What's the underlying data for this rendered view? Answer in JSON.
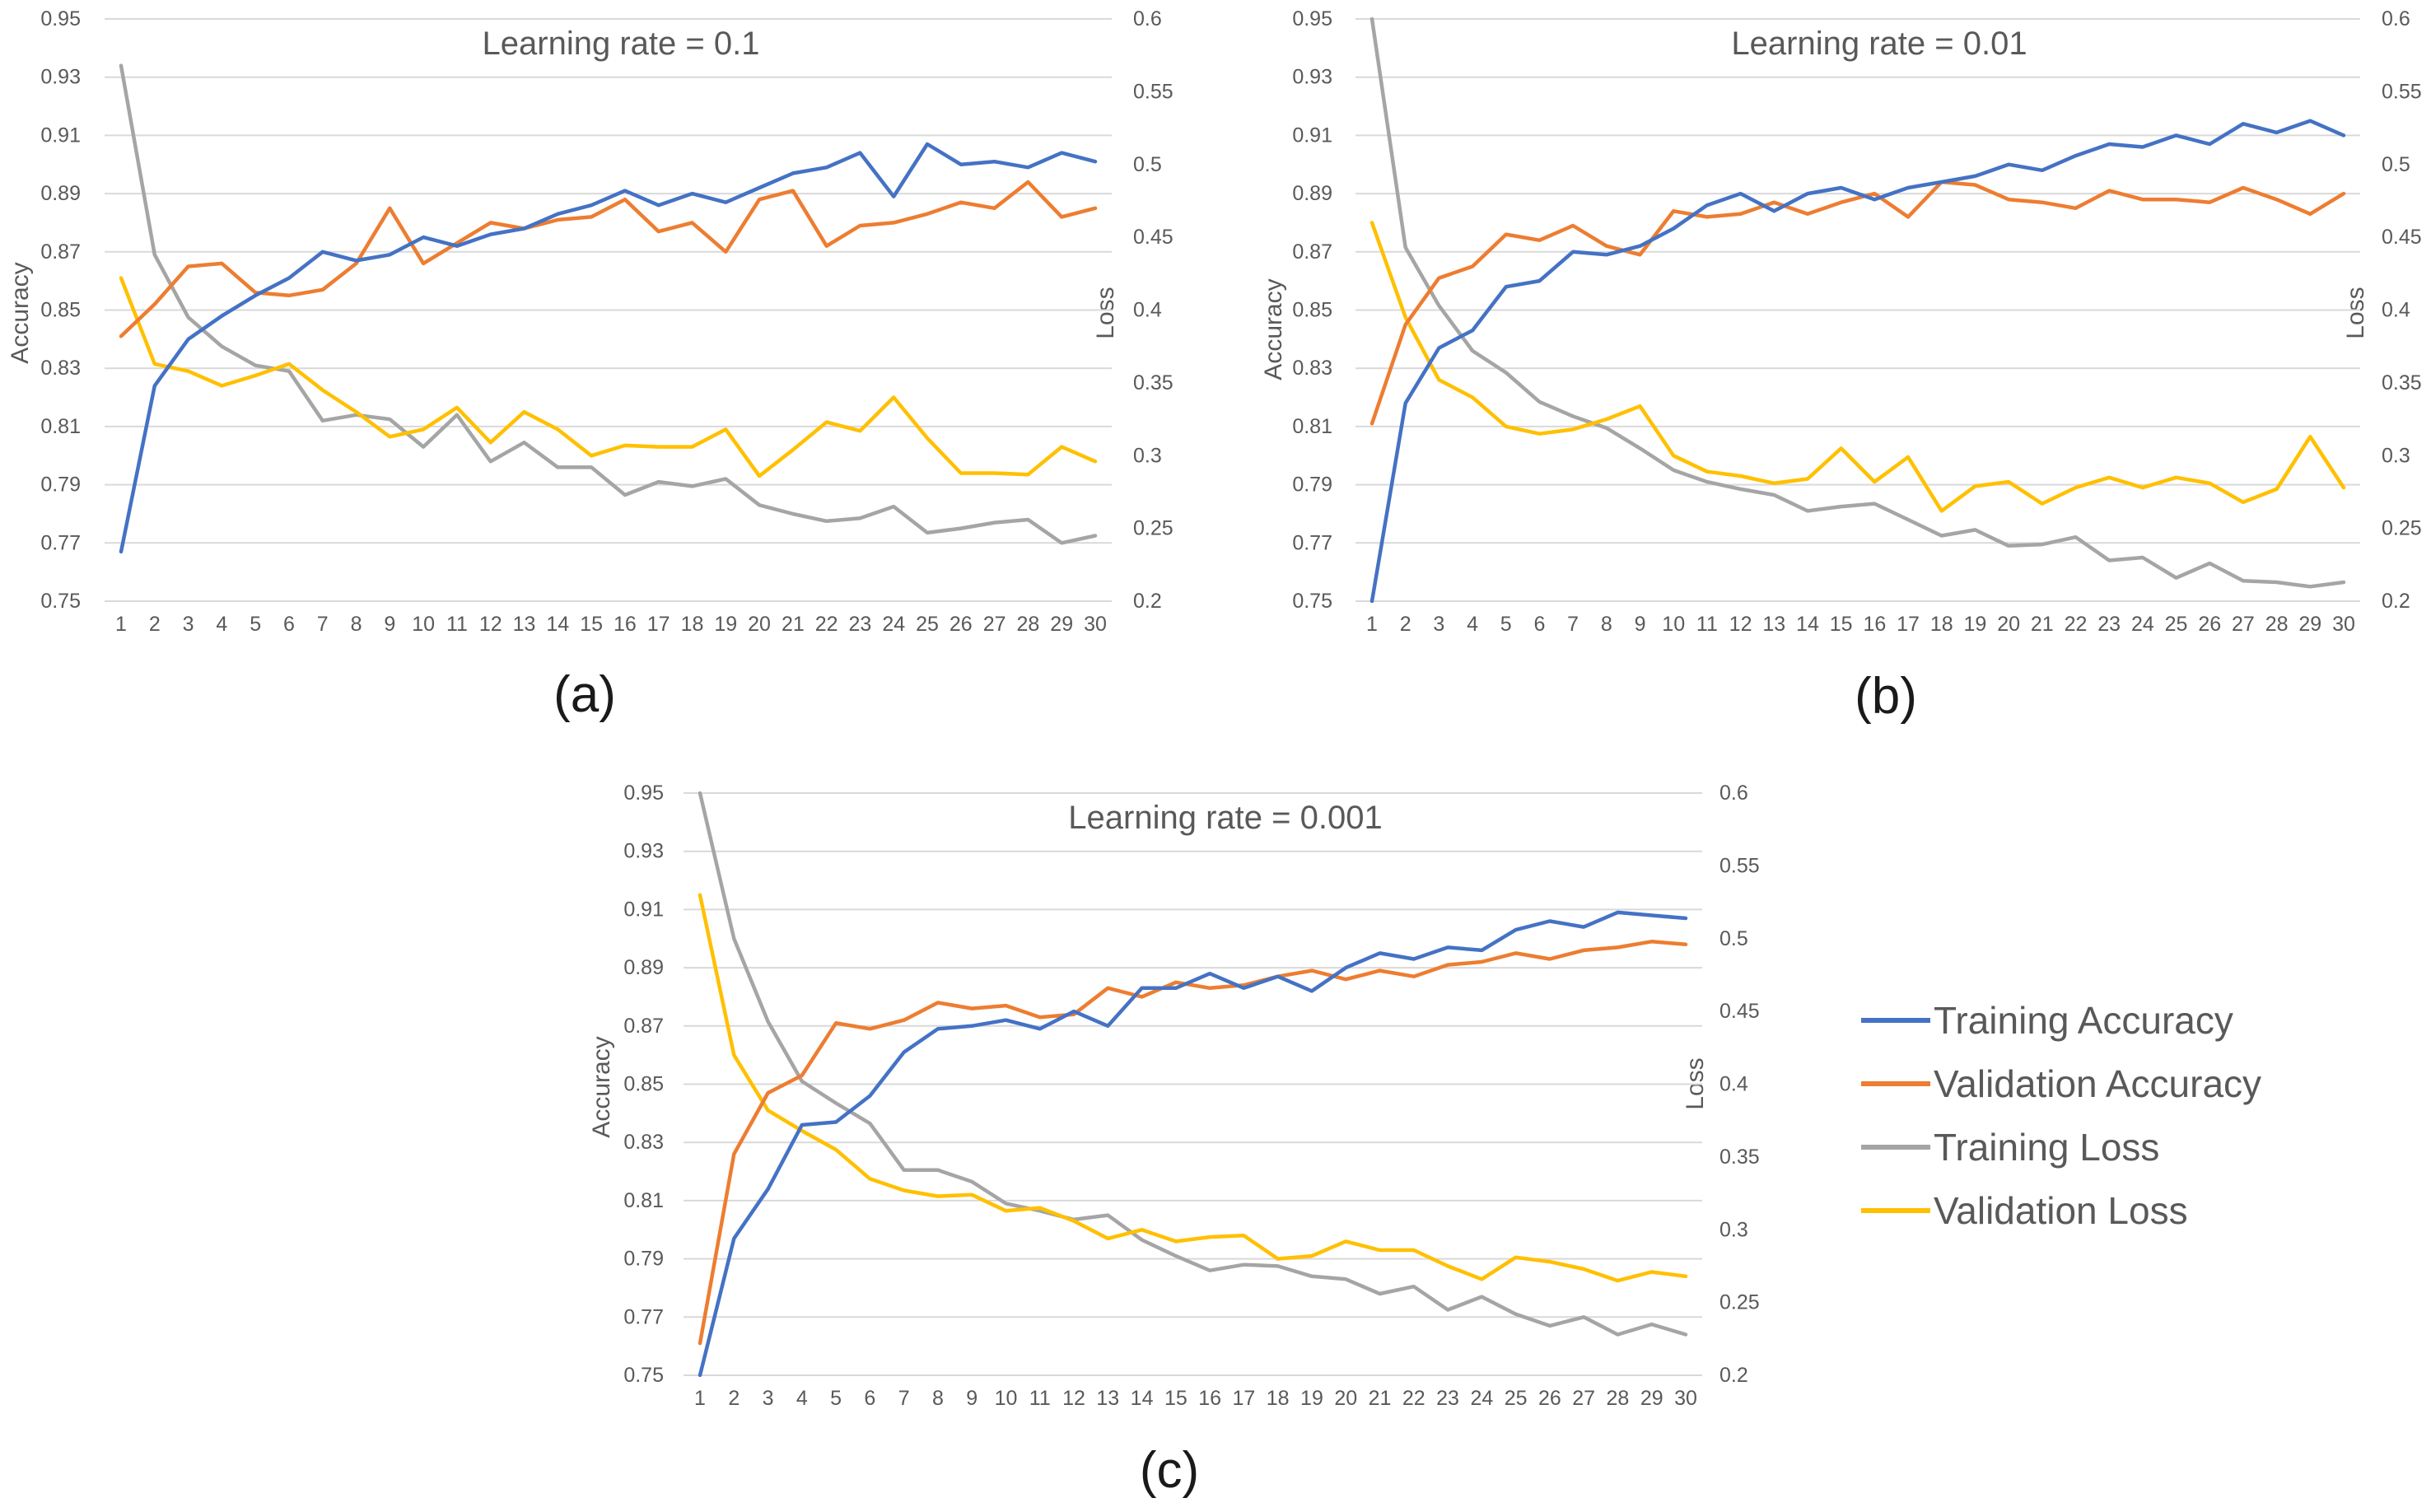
{
  "legend": {
    "entries": [
      {
        "name": "Training Accuracy",
        "color": "#4472C4"
      },
      {
        "name": "Validation Accuracy",
        "color": "#ED7D31"
      },
      {
        "name": "Training Loss",
        "color": "#A5A5A5"
      },
      {
        "name": "Validation Loss",
        "color": "#FFC000"
      }
    ]
  },
  "chart_data": [
    {
      "type": "line",
      "panel_label": "(a)",
      "title": "Learning rate = 0.1",
      "xlabel": "",
      "ylabel": "Accuracy",
      "y2label": "Loss",
      "x": [
        1,
        2,
        3,
        4,
        5,
        6,
        7,
        8,
        9,
        10,
        11,
        12,
        13,
        14,
        15,
        16,
        17,
        18,
        19,
        20,
        21,
        22,
        23,
        24,
        25,
        26,
        27,
        28,
        29,
        30
      ],
      "ylim": [
        0.75,
        0.95
      ],
      "y_ticks": [
        "0.75",
        "0.77",
        "0.79",
        "0.81",
        "0.83",
        "0.85",
        "0.87",
        "0.89",
        "0.91",
        "0.93",
        "0.95"
      ],
      "y2lim": [
        0.2,
        0.6
      ],
      "y2_ticks": [
        "0.2",
        "0.25",
        "0.3",
        "0.35",
        "0.4",
        "0.45",
        "0.5",
        "0.55",
        "0.6"
      ],
      "series": [
        {
          "name": "Training Accuracy",
          "axis": "left",
          "color": "#4472C4",
          "values": [
            0.767,
            0.824,
            0.84,
            0.848,
            0.855,
            0.861,
            0.87,
            0.867,
            0.869,
            0.875,
            0.872,
            0.876,
            0.878,
            0.883,
            0.886,
            0.891,
            0.886,
            0.89,
            0.887,
            0.892,
            0.897,
            0.899,
            0.904,
            0.889,
            0.907,
            0.9,
            0.901,
            0.899,
            0.904,
            0.901
          ]
        },
        {
          "name": "Validation Accuracy",
          "axis": "left",
          "color": "#ED7D31",
          "values": [
            0.841,
            0.852,
            0.865,
            0.866,
            0.856,
            0.855,
            0.857,
            0.866,
            0.885,
            0.866,
            0.873,
            0.88,
            0.878,
            0.881,
            0.882,
            0.888,
            0.877,
            0.88,
            0.87,
            0.888,
            0.891,
            0.872,
            0.879,
            0.88,
            0.883,
            0.887,
            0.885,
            0.894,
            0.882,
            0.885
          ]
        },
        {
          "name": "Training Loss",
          "axis": "right",
          "color": "#A5A5A5",
          "values": [
            0.568,
            0.438,
            0.395,
            0.375,
            0.362,
            0.358,
            0.324,
            0.328,
            0.325,
            0.306,
            0.328,
            0.296,
            0.309,
            0.292,
            0.292,
            0.273,
            0.282,
            0.279,
            0.284,
            0.266,
            0.26,
            0.255,
            0.257,
            0.265,
            0.247,
            0.25,
            0.254,
            0.256,
            0.24,
            0.245
          ]
        },
        {
          "name": "Validation Loss",
          "axis": "right",
          "color": "#FFC000",
          "values": [
            0.422,
            0.363,
            0.358,
            0.348,
            0.355,
            0.363,
            0.345,
            0.33,
            0.313,
            0.318,
            0.333,
            0.309,
            0.33,
            0.318,
            0.3,
            0.307,
            0.306,
            0.306,
            0.318,
            0.286,
            0.304,
            0.323,
            0.317,
            0.34,
            0.312,
            0.288,
            0.288,
            0.287,
            0.306,
            0.296
          ]
        }
      ]
    },
    {
      "type": "line",
      "panel_label": "(b)",
      "title": "Learning rate = 0.01",
      "xlabel": "",
      "ylabel": "Accuracy",
      "y2label": "Loss",
      "x": [
        1,
        2,
        3,
        4,
        5,
        6,
        7,
        8,
        9,
        10,
        11,
        12,
        13,
        14,
        15,
        16,
        17,
        18,
        19,
        20,
        21,
        22,
        23,
        24,
        25,
        26,
        27,
        28,
        29,
        30
      ],
      "ylim": [
        0.75,
        0.95
      ],
      "y_ticks": [
        "0.75",
        "0.77",
        "0.79",
        "0.81",
        "0.83",
        "0.85",
        "0.87",
        "0.89",
        "0.91",
        "0.93",
        "0.95"
      ],
      "y2lim": [
        0.2,
        0.6
      ],
      "y2_ticks": [
        "0.2",
        "0.25",
        "0.3",
        "0.35",
        "0.4",
        "0.45",
        "0.5",
        "0.55",
        "0.6"
      ],
      "series": [
        {
          "name": "Training Accuracy",
          "axis": "left",
          "color": "#4472C4",
          "values": [
            0.75,
            0.818,
            0.837,
            0.843,
            0.858,
            0.86,
            0.87,
            0.869,
            0.872,
            0.878,
            0.886,
            0.89,
            0.884,
            0.89,
            0.892,
            0.888,
            0.892,
            0.894,
            0.896,
            0.9,
            0.898,
            0.903,
            0.907,
            0.906,
            0.91,
            0.907,
            0.914,
            0.911,
            0.915,
            0.91
          ]
        },
        {
          "name": "Validation Accuracy",
          "axis": "left",
          "color": "#ED7D31",
          "values": [
            0.811,
            0.845,
            0.861,
            0.865,
            0.876,
            0.874,
            0.879,
            0.872,
            0.869,
            0.884,
            0.882,
            0.883,
            0.887,
            0.883,
            0.887,
            0.89,
            0.882,
            0.894,
            0.893,
            0.888,
            0.887,
            0.885,
            0.891,
            0.888,
            0.888,
            0.887,
            0.892,
            0.888,
            0.883,
            0.89
          ]
        },
        {
          "name": "Training Loss",
          "axis": "right",
          "color": "#A5A5A5",
          "values": [
            0.6,
            0.443,
            0.403,
            0.372,
            0.357,
            0.337,
            0.327,
            0.319,
            0.305,
            0.29,
            0.282,
            0.277,
            0.273,
            0.262,
            0.265,
            0.267,
            0.256,
            0.245,
            0.249,
            0.238,
            0.239,
            0.244,
            0.228,
            0.23,
            0.216,
            0.226,
            0.214,
            0.213,
            0.21,
            0.213
          ]
        },
        {
          "name": "Validation Loss",
          "axis": "right",
          "color": "#FFC000",
          "values": [
            0.46,
            0.395,
            0.352,
            0.34,
            0.32,
            0.315,
            0.318,
            0.325,
            0.334,
            0.3,
            0.289,
            0.286,
            0.281,
            0.284,
            0.305,
            0.282,
            0.299,
            0.262,
            0.279,
            0.282,
            0.267,
            0.278,
            0.285,
            0.278,
            0.285,
            0.281,
            0.268,
            0.277,
            0.313,
            0.278
          ]
        }
      ]
    },
    {
      "type": "line",
      "panel_label": "(c)",
      "title": "Learning rate = 0.001",
      "xlabel": "",
      "ylabel": "Accuracy",
      "y2label": "Loss",
      "x": [
        1,
        2,
        3,
        4,
        5,
        6,
        7,
        8,
        9,
        10,
        11,
        12,
        13,
        14,
        15,
        16,
        17,
        18,
        19,
        20,
        21,
        22,
        23,
        24,
        25,
        26,
        27,
        28,
        29,
        30
      ],
      "ylim": [
        0.75,
        0.95
      ],
      "y_ticks": [
        "0.75",
        "0.77",
        "0.79",
        "0.81",
        "0.83",
        "0.85",
        "0.87",
        "0.89",
        "0.91",
        "0.93",
        "0.95"
      ],
      "y2lim": [
        0.2,
        0.6
      ],
      "y2_ticks": [
        "0.2",
        "0.25",
        "0.3",
        "0.35",
        "0.4",
        "0.45",
        "0.5",
        "0.55",
        "0.6"
      ],
      "series": [
        {
          "name": "Training Accuracy",
          "axis": "left",
          "color": "#4472C4",
          "values": [
            0.75,
            0.797,
            0.814,
            0.836,
            0.837,
            0.846,
            0.861,
            0.869,
            0.87,
            0.872,
            0.869,
            0.875,
            0.87,
            0.883,
            0.883,
            0.888,
            0.883,
            0.887,
            0.882,
            0.89,
            0.895,
            0.893,
            0.897,
            0.896,
            0.903,
            0.906,
            0.904,
            0.909,
            0.908,
            0.907
          ]
        },
        {
          "name": "Validation Accuracy",
          "axis": "left",
          "color": "#ED7D31",
          "values": [
            0.761,
            0.826,
            0.847,
            0.853,
            0.871,
            0.869,
            0.872,
            0.878,
            0.876,
            0.877,
            0.873,
            0.874,
            0.883,
            0.88,
            0.885,
            0.883,
            0.884,
            0.887,
            0.889,
            0.886,
            0.889,
            0.887,
            0.891,
            0.892,
            0.895,
            0.893,
            0.896,
            0.897,
            0.899,
            0.898
          ]
        },
        {
          "name": "Training Loss",
          "axis": "right",
          "color": "#A5A5A5",
          "values": [
            0.6,
            0.5,
            0.443,
            0.402,
            0.387,
            0.373,
            0.341,
            0.341,
            0.333,
            0.318,
            0.313,
            0.307,
            0.31,
            0.293,
            0.282,
            0.272,
            0.276,
            0.275,
            0.268,
            0.266,
            0.256,
            0.261,
            0.245,
            0.254,
            0.242,
            0.234,
            0.24,
            0.228,
            0.235,
            0.228
          ]
        },
        {
          "name": "Validation Loss",
          "axis": "right",
          "color": "#FFC000",
          "values": [
            0.53,
            0.42,
            0.382,
            0.368,
            0.355,
            0.335,
            0.327,
            0.323,
            0.324,
            0.313,
            0.315,
            0.306,
            0.294,
            0.3,
            0.292,
            0.295,
            0.296,
            0.28,
            0.282,
            0.292,
            0.286,
            0.286,
            0.275,
            0.266,
            0.281,
            0.278,
            0.273,
            0.265,
            0.271,
            0.268
          ]
        }
      ]
    }
  ]
}
